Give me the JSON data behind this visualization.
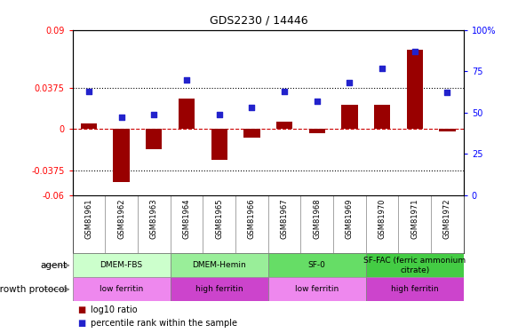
{
  "title": "GDS2230 / 14446",
  "samples": [
    "GSM81961",
    "GSM81962",
    "GSM81963",
    "GSM81964",
    "GSM81965",
    "GSM81966",
    "GSM81967",
    "GSM81968",
    "GSM81969",
    "GSM81970",
    "GSM81971",
    "GSM81972"
  ],
  "log10_ratio": [
    0.005,
    -0.048,
    -0.018,
    0.028,
    -0.028,
    -0.008,
    0.007,
    -0.004,
    0.022,
    0.022,
    0.072,
    -0.002
  ],
  "percentile_rank": [
    63,
    47,
    49,
    70,
    49,
    53,
    63,
    57,
    68,
    77,
    87,
    62
  ],
  "ylim_left": [
    -0.06,
    0.09
  ],
  "ylim_right": [
    0,
    100
  ],
  "yticks_left": [
    -0.06,
    -0.0375,
    0,
    0.0375,
    0.09
  ],
  "yticks_right": [
    0,
    25,
    50,
    75,
    100
  ],
  "hlines": [
    0.0375,
    -0.0375
  ],
  "bar_color": "#990000",
  "scatter_color": "#2222cc",
  "zero_line_color": "#cc0000",
  "agent_groups": [
    {
      "label": "DMEM-FBS",
      "start": 0,
      "end": 3,
      "color": "#ccffcc"
    },
    {
      "label": "DMEM-Hemin",
      "start": 3,
      "end": 6,
      "color": "#99ee99"
    },
    {
      "label": "SF-0",
      "start": 6,
      "end": 9,
      "color": "#66dd66"
    },
    {
      "label": "SF-FAC (ferric ammonium\ncitrate)",
      "start": 9,
      "end": 12,
      "color": "#44cc44"
    }
  ],
  "growth_groups": [
    {
      "label": "low ferritin",
      "start": 0,
      "end": 3,
      "color": "#ee88ee"
    },
    {
      "label": "high ferritin",
      "start": 3,
      "end": 6,
      "color": "#cc44cc"
    },
    {
      "label": "low ferritin",
      "start": 6,
      "end": 9,
      "color": "#ee88ee"
    },
    {
      "label": "high ferritin",
      "start": 9,
      "end": 12,
      "color": "#cc44cc"
    }
  ],
  "legend_items": [
    {
      "label": "log10 ratio",
      "color": "#990000"
    },
    {
      "label": "percentile rank within the sample",
      "color": "#2222cc"
    }
  ],
  "bar_width": 0.5,
  "scatter_size": 18
}
